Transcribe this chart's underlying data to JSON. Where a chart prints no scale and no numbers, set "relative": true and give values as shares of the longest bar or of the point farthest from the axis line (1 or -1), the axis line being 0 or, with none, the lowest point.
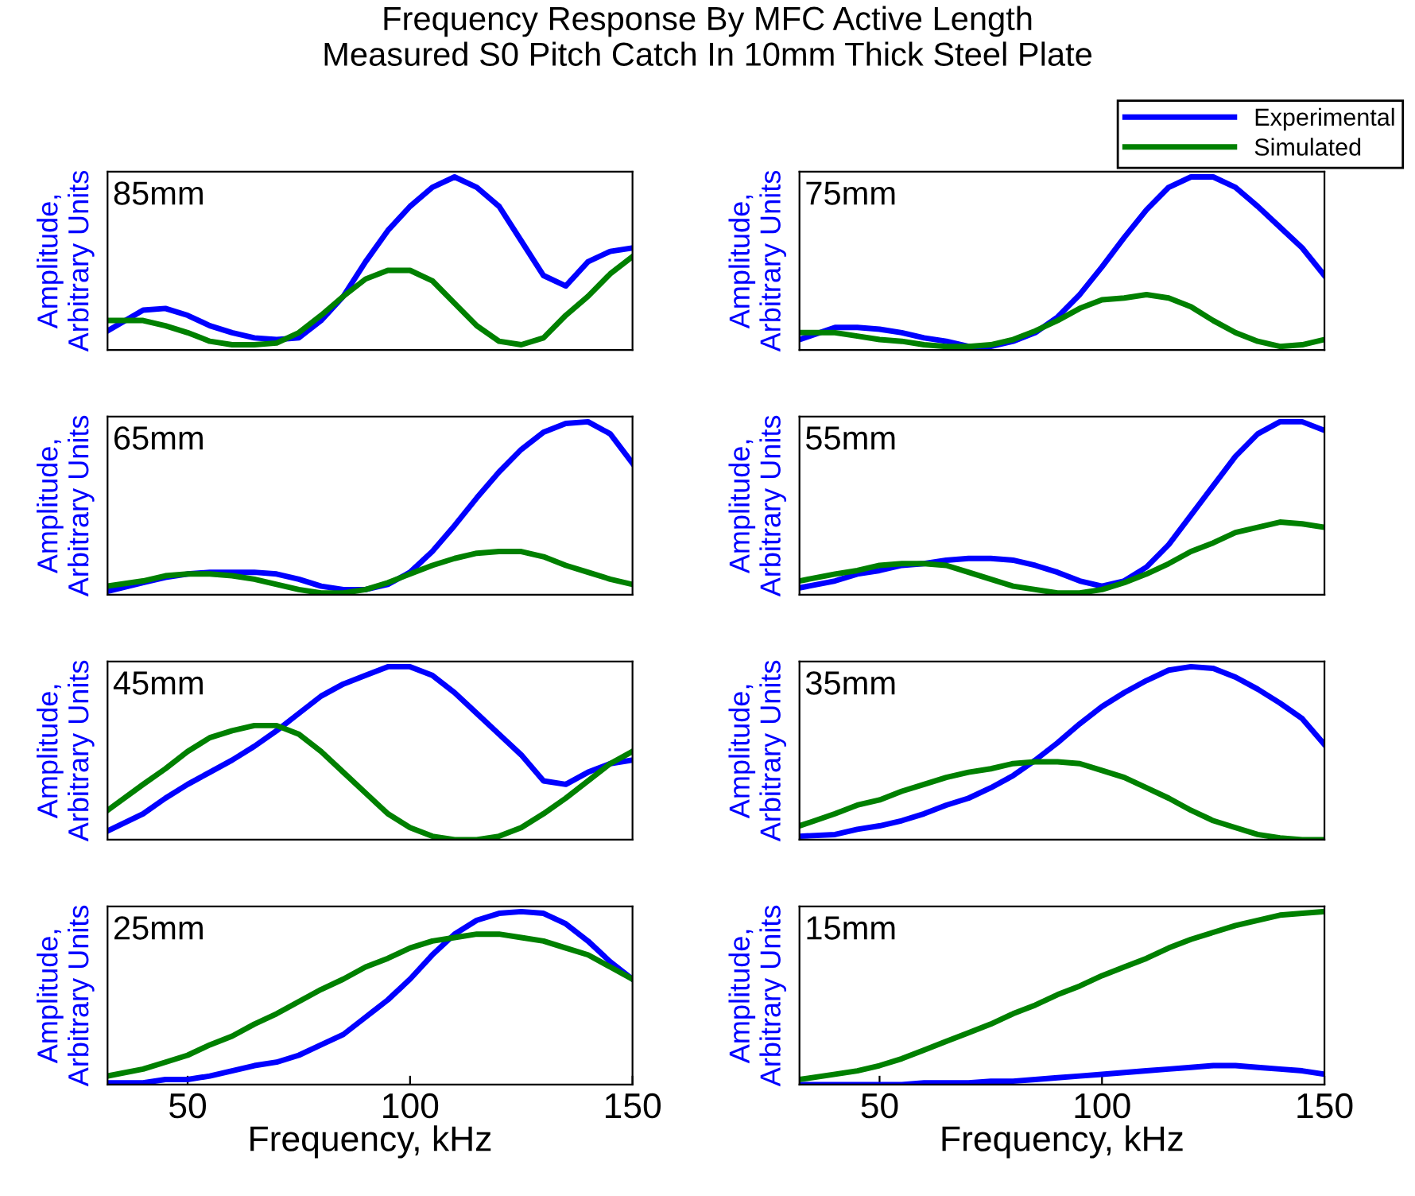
{
  "chart_data": [
    {
      "type": "line",
      "title": "Frequency Response By MFC Active Length\nMeasured S0 Pitch Catch In 10mm Thick Steel Plate",
      "ylabel": "Amplitude,\nArbitrary Units",
      "annotations": [
        "85mm"
      ],
      "relative": true,
      "xlim": [
        32,
        150
      ],
      "tick_labels": false,
      "x": [
        32,
        40,
        45,
        50,
        55,
        60,
        65,
        70,
        75,
        80,
        85,
        90,
        95,
        100,
        105,
        110,
        115,
        120,
        125,
        130,
        135,
        140,
        145,
        150
      ],
      "series": [
        {
          "color": "#0000ff",
          "values": [
            0.11,
            0.23,
            0.24,
            0.2,
            0.14,
            0.1,
            0.07,
            0.06,
            0.07,
            0.17,
            0.31,
            0.51,
            0.69,
            0.83,
            0.94,
            1.0,
            0.94,
            0.83,
            0.63,
            0.43,
            0.37,
            0.51,
            0.57,
            0.59
          ]
        },
        {
          "color": "#008000",
          "values": [
            0.17,
            0.17,
            0.14,
            0.1,
            0.05,
            0.03,
            0.03,
            0.04,
            0.1,
            0.2,
            0.31,
            0.41,
            0.46,
            0.46,
            0.4,
            0.27,
            0.14,
            0.05,
            0.03,
            0.07,
            0.2,
            0.31,
            0.44,
            0.54
          ]
        }
      ]
    },
    {
      "type": "line",
      "ylabel": "Amplitude,\nArbitrary Units",
      "annotations": [
        "75mm"
      ],
      "relative": true,
      "xlim": [
        32,
        150
      ],
      "tick_labels": false,
      "legend": "top right",
      "x": [
        32,
        40,
        45,
        50,
        55,
        60,
        65,
        70,
        75,
        80,
        85,
        90,
        95,
        100,
        105,
        110,
        115,
        120,
        125,
        130,
        135,
        140,
        145,
        150
      ],
      "series": [
        {
          "name": "Experimental",
          "color": "#0000ff",
          "values": [
            0.06,
            0.13,
            0.13,
            0.12,
            0.1,
            0.07,
            0.05,
            0.02,
            0.02,
            0.05,
            0.1,
            0.19,
            0.32,
            0.48,
            0.65,
            0.81,
            0.94,
            1.0,
            1.0,
            0.94,
            0.83,
            0.71,
            0.59,
            0.43
          ]
        },
        {
          "name": "Simulated",
          "color": "#008000",
          "values": [
            0.1,
            0.1,
            0.08,
            0.06,
            0.05,
            0.03,
            0.02,
            0.02,
            0.03,
            0.06,
            0.11,
            0.17,
            0.24,
            0.29,
            0.3,
            0.32,
            0.3,
            0.25,
            0.17,
            0.1,
            0.05,
            0.02,
            0.03,
            0.06
          ]
        }
      ]
    },
    {
      "type": "line",
      "ylabel": "Amplitude,\nArbitrary Units",
      "annotations": [
        "65mm"
      ],
      "relative": true,
      "xlim": [
        32,
        150
      ],
      "tick_labels": false,
      "x": [
        32,
        40,
        45,
        50,
        55,
        60,
        65,
        70,
        75,
        80,
        85,
        90,
        95,
        100,
        105,
        110,
        115,
        120,
        125,
        130,
        135,
        140,
        145,
        150
      ],
      "series": [
        {
          "color": "#0000ff",
          "values": [
            0.02,
            0.07,
            0.1,
            0.12,
            0.13,
            0.13,
            0.13,
            0.12,
            0.09,
            0.05,
            0.03,
            0.03,
            0.06,
            0.13,
            0.25,
            0.4,
            0.56,
            0.71,
            0.84,
            0.94,
            0.99,
            1.0,
            0.93,
            0.76
          ]
        },
        {
          "color": "#008000",
          "values": [
            0.05,
            0.08,
            0.11,
            0.12,
            0.12,
            0.11,
            0.09,
            0.06,
            0.03,
            0.01,
            0.01,
            0.03,
            0.07,
            0.12,
            0.17,
            0.21,
            0.24,
            0.25,
            0.25,
            0.22,
            0.17,
            0.13,
            0.09,
            0.06
          ]
        }
      ]
    },
    {
      "type": "line",
      "ylabel": "Amplitude,\nArbitrary Units",
      "annotations": [
        "55mm"
      ],
      "relative": true,
      "xlim": [
        32,
        150
      ],
      "tick_labels": false,
      "x": [
        32,
        40,
        45,
        50,
        55,
        60,
        65,
        70,
        75,
        80,
        85,
        90,
        95,
        100,
        105,
        110,
        115,
        120,
        125,
        130,
        135,
        140,
        145,
        150
      ],
      "series": [
        {
          "color": "#0000ff",
          "values": [
            0.04,
            0.08,
            0.12,
            0.14,
            0.17,
            0.18,
            0.2,
            0.21,
            0.21,
            0.2,
            0.17,
            0.13,
            0.08,
            0.05,
            0.08,
            0.16,
            0.29,
            0.46,
            0.63,
            0.8,
            0.93,
            1.0,
            1.0,
            0.95
          ]
        },
        {
          "color": "#008000",
          "values": [
            0.08,
            0.12,
            0.14,
            0.17,
            0.18,
            0.18,
            0.17,
            0.13,
            0.09,
            0.05,
            0.03,
            0.01,
            0.01,
            0.03,
            0.07,
            0.12,
            0.18,
            0.25,
            0.3,
            0.36,
            0.39,
            0.42,
            0.41,
            0.39
          ]
        }
      ]
    },
    {
      "type": "line",
      "ylabel": "Amplitude,\nArbitrary Units",
      "annotations": [
        "45mm"
      ],
      "relative": true,
      "xlim": [
        32,
        150
      ],
      "tick_labels": false,
      "x": [
        32,
        40,
        45,
        50,
        55,
        60,
        65,
        70,
        75,
        80,
        85,
        90,
        95,
        100,
        105,
        110,
        115,
        120,
        125,
        130,
        135,
        140,
        145,
        150
      ],
      "series": [
        {
          "color": "#0000ff",
          "values": [
            0.05,
            0.15,
            0.24,
            0.32,
            0.39,
            0.46,
            0.54,
            0.63,
            0.73,
            0.83,
            0.9,
            0.95,
            1.0,
            1.0,
            0.95,
            0.85,
            0.73,
            0.61,
            0.49,
            0.34,
            0.32,
            0.39,
            0.44,
            0.46
          ]
        },
        {
          "color": "#008000",
          "values": [
            0.17,
            0.32,
            0.41,
            0.51,
            0.59,
            0.63,
            0.66,
            0.66,
            0.61,
            0.51,
            0.39,
            0.27,
            0.15,
            0.07,
            0.02,
            0.0,
            0.0,
            0.02,
            0.07,
            0.15,
            0.24,
            0.34,
            0.44,
            0.51
          ]
        }
      ]
    },
    {
      "type": "line",
      "ylabel": "Amplitude,\nArbitrary Units",
      "annotations": [
        "35mm"
      ],
      "relative": true,
      "xlim": [
        32,
        150
      ],
      "tick_labels": false,
      "x": [
        32,
        40,
        45,
        50,
        55,
        60,
        65,
        70,
        75,
        80,
        85,
        90,
        95,
        100,
        105,
        110,
        115,
        120,
        125,
        130,
        135,
        140,
        145,
        150
      ],
      "series": [
        {
          "color": "#0000ff",
          "values": [
            0.02,
            0.03,
            0.06,
            0.08,
            0.11,
            0.15,
            0.2,
            0.24,
            0.3,
            0.37,
            0.46,
            0.56,
            0.67,
            0.77,
            0.85,
            0.92,
            0.98,
            1.0,
            0.99,
            0.94,
            0.87,
            0.79,
            0.7,
            0.55
          ]
        },
        {
          "color": "#008000",
          "values": [
            0.08,
            0.15,
            0.2,
            0.23,
            0.28,
            0.32,
            0.36,
            0.39,
            0.41,
            0.44,
            0.45,
            0.45,
            0.44,
            0.4,
            0.36,
            0.3,
            0.24,
            0.17,
            0.11,
            0.07,
            0.03,
            0.01,
            0.0,
            0.0
          ]
        }
      ]
    },
    {
      "type": "line",
      "ylabel": "Amplitude,\nArbitrary Units",
      "xlabel": "Frequency, kHz",
      "annotations": [
        "25mm"
      ],
      "relative": true,
      "xlim": [
        32,
        150
      ],
      "xticks": [
        50,
        100,
        150
      ],
      "tick_labels": "x",
      "x": [
        32,
        40,
        45,
        50,
        55,
        60,
        65,
        70,
        75,
        80,
        85,
        90,
        95,
        100,
        105,
        110,
        115,
        120,
        125,
        130,
        135,
        140,
        145,
        150
      ],
      "series": [
        {
          "color": "#0000ff",
          "values": [
            0.01,
            0.01,
            0.03,
            0.03,
            0.05,
            0.08,
            0.11,
            0.13,
            0.17,
            0.23,
            0.29,
            0.39,
            0.49,
            0.61,
            0.75,
            0.87,
            0.95,
            0.99,
            1.0,
            0.99,
            0.93,
            0.83,
            0.71,
            0.61
          ]
        },
        {
          "color": "#008000",
          "values": [
            0.05,
            0.09,
            0.13,
            0.17,
            0.23,
            0.28,
            0.35,
            0.41,
            0.48,
            0.55,
            0.61,
            0.68,
            0.73,
            0.79,
            0.83,
            0.85,
            0.87,
            0.87,
            0.85,
            0.83,
            0.79,
            0.75,
            0.68,
            0.61
          ]
        }
      ]
    },
    {
      "type": "line",
      "ylabel": "Amplitude,\nArbitrary Units",
      "xlabel": "Frequency, kHz",
      "annotations": [
        "15mm"
      ],
      "relative": true,
      "xlim": [
        32,
        150
      ],
      "xticks": [
        50,
        100,
        150
      ],
      "tick_labels": "x",
      "x": [
        32,
        40,
        45,
        50,
        55,
        60,
        65,
        70,
        75,
        80,
        85,
        90,
        95,
        100,
        105,
        110,
        115,
        120,
        125,
        130,
        135,
        140,
        145,
        150
      ],
      "series": [
        {
          "color": "#0000ff",
          "values": [
            0.0,
            0.0,
            0.0,
            0.0,
            0.0,
            0.01,
            0.01,
            0.01,
            0.02,
            0.02,
            0.03,
            0.04,
            0.05,
            0.06,
            0.07,
            0.08,
            0.09,
            0.1,
            0.11,
            0.11,
            0.1,
            0.09,
            0.08,
            0.06
          ]
        },
        {
          "color": "#008000",
          "values": [
            0.03,
            0.06,
            0.08,
            0.11,
            0.15,
            0.2,
            0.25,
            0.3,
            0.35,
            0.41,
            0.46,
            0.52,
            0.57,
            0.63,
            0.68,
            0.73,
            0.79,
            0.84,
            0.88,
            0.92,
            0.95,
            0.98,
            0.99,
            1.0
          ]
        }
      ]
    }
  ]
}
